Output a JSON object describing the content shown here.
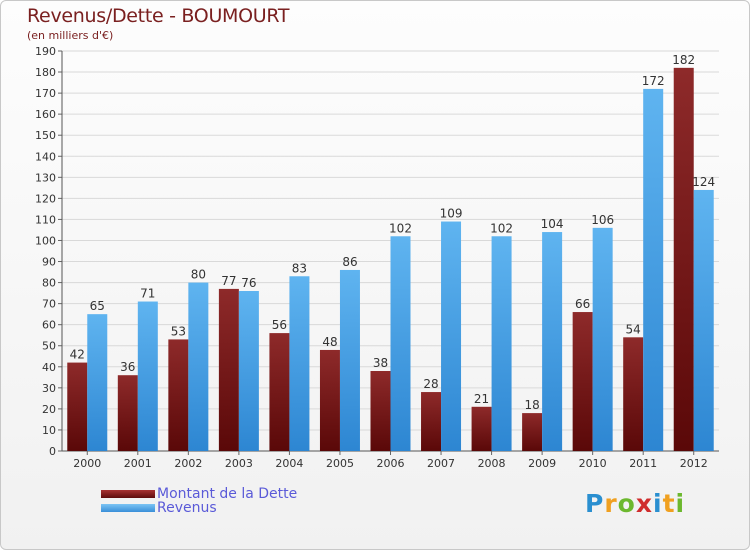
{
  "chart_data": {
    "type": "bar",
    "title": "Revenus/Dette - BOUMOURT",
    "subtitle": "(en milliers d'€)",
    "categories": [
      "2000",
      "2001",
      "2002",
      "2003",
      "2004",
      "2005",
      "2006",
      "2007",
      "2008",
      "2009",
      "2010",
      "2011",
      "2012"
    ],
    "series": [
      {
        "name": "Montant de la Dette",
        "color": "#7a1a1a",
        "values": [
          42,
          36,
          53,
          77,
          56,
          48,
          38,
          28,
          21,
          18,
          66,
          54,
          182
        ]
      },
      {
        "name": "Revenus",
        "color": "#4aa3e8",
        "values": [
          65,
          71,
          80,
          76,
          83,
          86,
          102,
          109,
          102,
          104,
          106,
          172,
          124
        ]
      }
    ],
    "ylim": [
      0,
      190
    ],
    "yticks": [
      0,
      10,
      20,
      30,
      40,
      50,
      60,
      70,
      80,
      90,
      100,
      110,
      120,
      130,
      140,
      150,
      160,
      170,
      180,
      190
    ],
    "grid": true,
    "legend": "bottom-left"
  },
  "logo": {
    "letters": [
      "P",
      "r",
      "o",
      "x",
      "i",
      "t",
      "i"
    ],
    "colors": [
      "#2a8fd0",
      "#f0a020",
      "#6cb82e",
      "#d02d2d",
      "#2a8fd0",
      "#f0a020",
      "#6cb82e"
    ]
  }
}
